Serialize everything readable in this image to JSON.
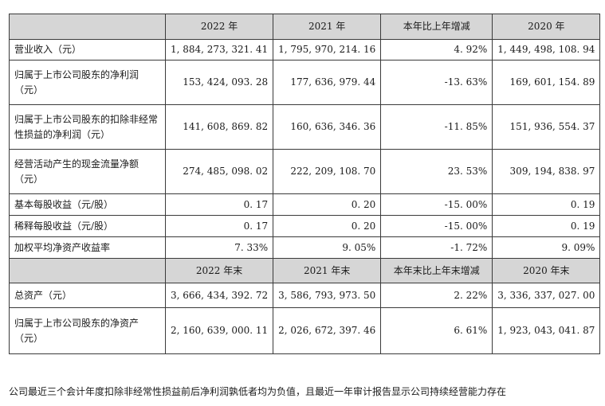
{
  "header1": [
    "2022 年",
    "2021 年",
    "本年比上年增减",
    "2020 年"
  ],
  "rows1": [
    {
      "label": "营业收入（元）",
      "values": [
        "1, 884, 273, 321. 41",
        "1, 795, 970, 214. 16",
        "4. 92%",
        "1, 449, 498, 108. 94"
      ]
    },
    {
      "label": "归属于上市公司股东的净利润（元）",
      "values": [
        "153, 424, 093. 28",
        "177, 636, 979. 44",
        "-13. 63%",
        "169, 601, 154. 89"
      ]
    },
    {
      "label": "归属于上市公司股东的扣除非经常性损益的净利润（元）",
      "values": [
        "141, 608, 869. 82",
        "160, 636, 346. 36",
        "-11. 85%",
        "151, 936, 554. 37"
      ]
    },
    {
      "label": "经营活动产生的现金流量净额（元）",
      "values": [
        "274, 485, 098. 02",
        "222, 209, 108. 70",
        "23. 53%",
        "309, 194, 838. 97"
      ]
    },
    {
      "label": "基本每股收益（元/股）",
      "values": [
        "0. 17",
        "0. 20",
        "-15. 00%",
        "0. 19"
      ]
    },
    {
      "label": "稀释每股收益（元/股）",
      "values": [
        "0. 17",
        "0. 20",
        "-15. 00%",
        "0. 19"
      ]
    },
    {
      "label": "加权平均净资产收益率",
      "values": [
        "7. 33%",
        "9. 05%",
        "-1. 72%",
        "9. 09%"
      ]
    }
  ],
  "header2": [
    "2022 年末",
    "2021 年末",
    "本年末比上年末增减",
    "2020 年末"
  ],
  "rows2": [
    {
      "label": "总资产（元）",
      "values": [
        "3, 666, 434, 392. 72",
        "3, 586, 793, 973. 50",
        "2. 22%",
        "3, 336, 337, 027. 00"
      ]
    },
    {
      "label": "归属于上市公司股东的净资产（元）",
      "values": [
        "2, 160, 639, 000. 11",
        "2, 026, 672, 397. 46",
        "6. 61%",
        "1, 923, 043, 041. 87"
      ]
    }
  ],
  "note": "公司最近三个会计年度扣除非经常性损益前后净利润孰低者均为负值，且最近一年审计报告显示公司持续经营能力存在"
}
